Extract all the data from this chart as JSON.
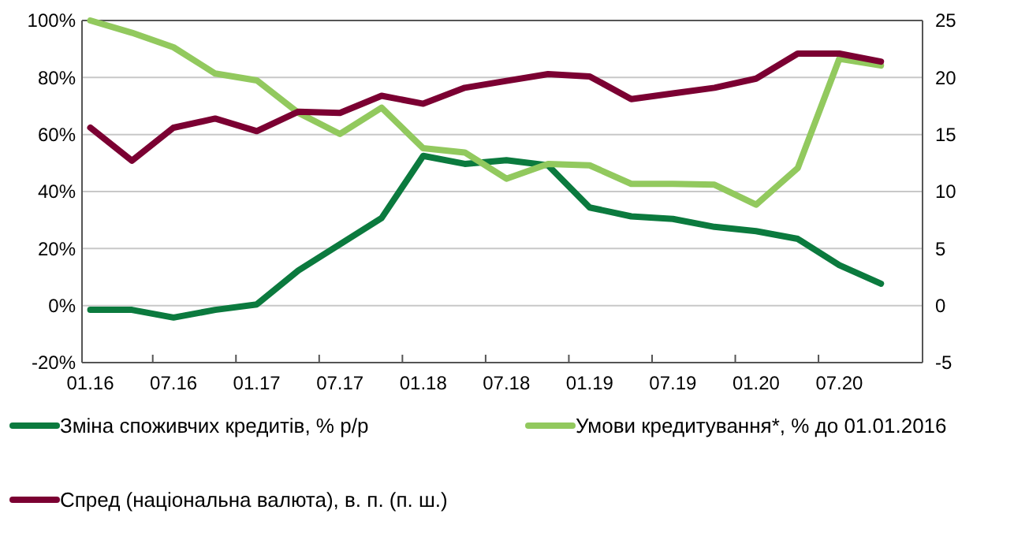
{
  "chart_data": {
    "type": "line",
    "categories": [
      "01.16",
      null,
      "07.16",
      null,
      "01.17",
      null,
      "07.17",
      null,
      "01.18",
      null,
      "07.18",
      null,
      "01.19",
      null,
      "07.19",
      null,
      "01.20",
      null,
      "07.20",
      null
    ],
    "series": [
      {
        "name": "Зміна споживчих кредитів, % р/р",
        "color": "#0b7a3e",
        "values": [
          -1.5,
          -1.5,
          -4.2,
          -1.5,
          0.4,
          12.3,
          21.5,
          30.7,
          52.5,
          49.7,
          51,
          49.2,
          34.4,
          31.3,
          30.4,
          27.6,
          26.1,
          23.4,
          14.2,
          7.7
        ]
      },
      {
        "name": "Умови кредитування*, % до 01.01.2016",
        "color": "#92c95e",
        "values": [
          100,
          95.7,
          90.6,
          81.4,
          79,
          67.6,
          60.2,
          69.4,
          55.2,
          53.7,
          44.5,
          49.7,
          49.2,
          42.7,
          42.7,
          42.4,
          35.4,
          48.2,
          86.6,
          84.2
        ]
      },
      {
        "name": "Спред (національна валюта), в. п. (п. ш.)",
        "color": "#7b0032",
        "axis": "y2",
        "values": [
          15.6,
          12.7,
          15.6,
          16.4,
          15.3,
          17,
          16.9,
          18.4,
          17.7,
          19.1,
          19.7,
          20.3,
          20.1,
          18.1,
          18.6,
          19.1,
          19.9,
          22.1,
          22.1,
          21.4
        ]
      }
    ],
    "ylim": [
      -20,
      100
    ],
    "yticks": [
      {
        "value": -20,
        "label": "-20%"
      },
      {
        "value": 0,
        "label": "0%"
      },
      {
        "value": 20,
        "label": "20%"
      },
      {
        "value": 40,
        "label": "40%"
      },
      {
        "value": 60,
        "label": "60%"
      },
      {
        "value": 80,
        "label": "80%"
      },
      {
        "value": 100,
        "label": "100%"
      }
    ],
    "y2lim": [
      -5,
      25
    ],
    "y2ticks": [
      -5,
      0,
      5,
      10,
      15,
      20,
      25
    ],
    "grid": "y",
    "legend": "bottom",
    "marker": "none",
    "line_style": "solid"
  }
}
